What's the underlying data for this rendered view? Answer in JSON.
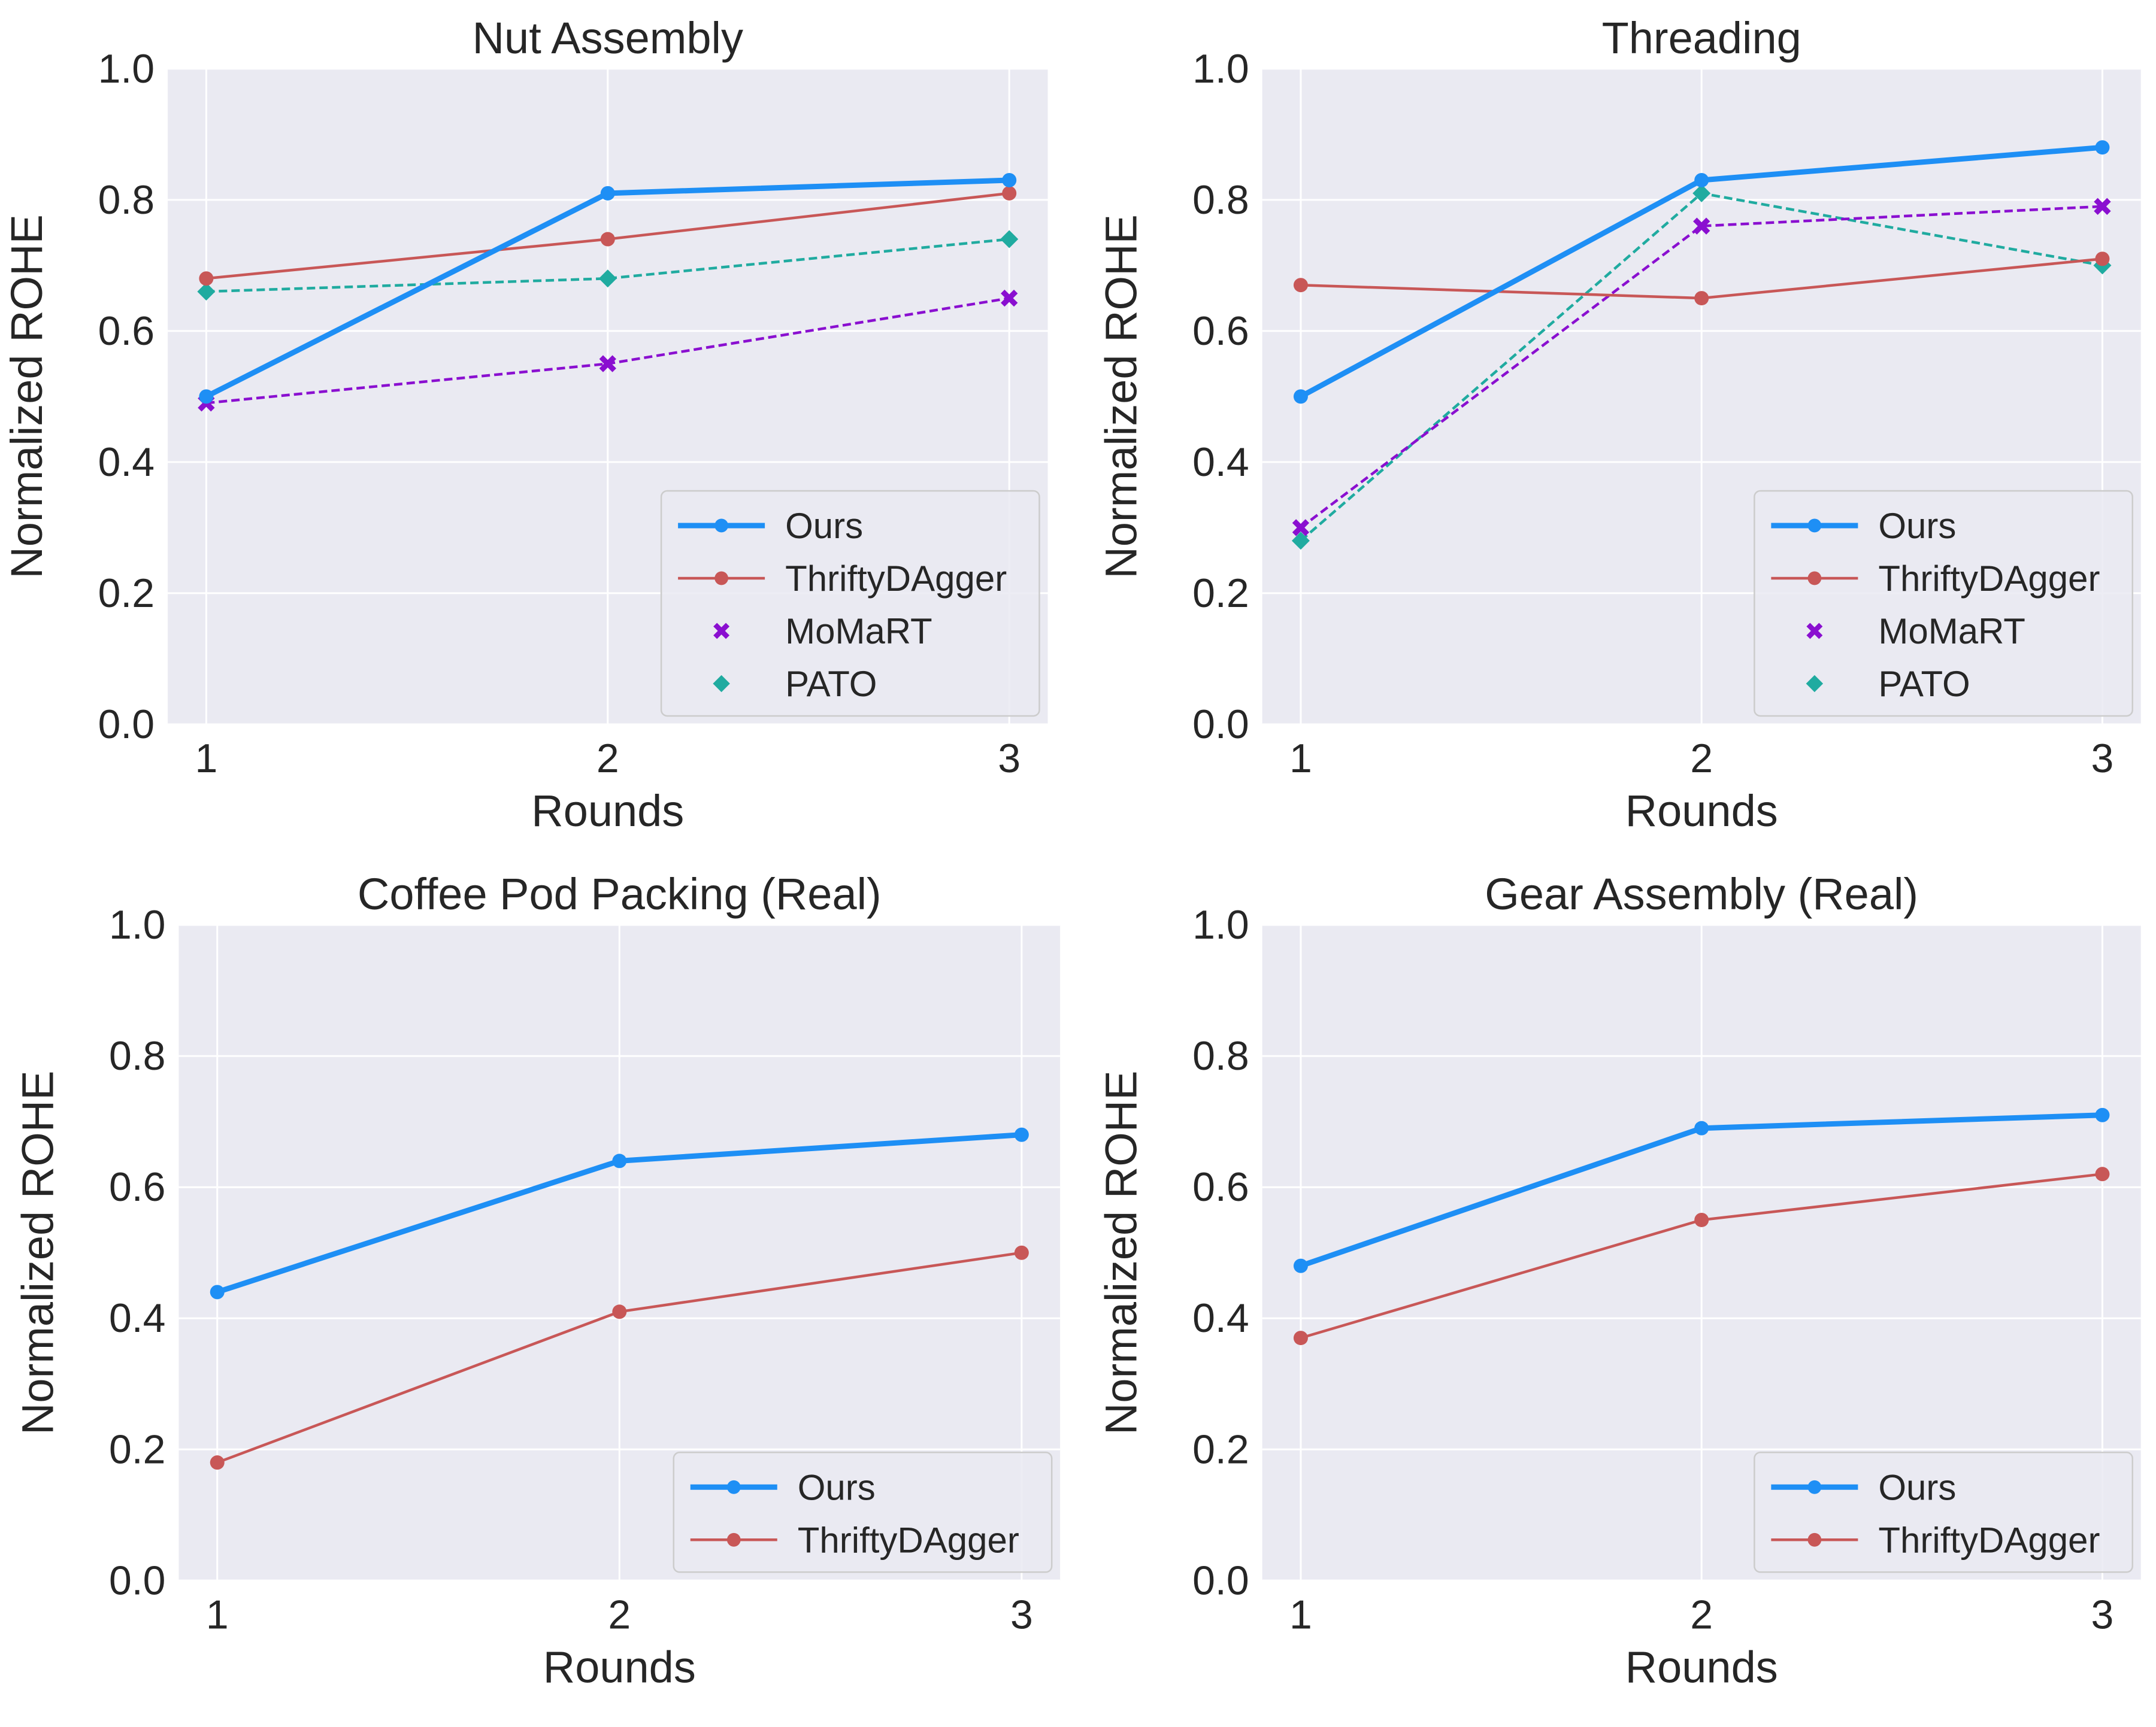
{
  "chart_data": [
    {
      "type": "line",
      "title": "Nut Assembly",
      "xlabel": "Rounds",
      "ylabel": "Normalized ROHE",
      "x": [
        1,
        2,
        3
      ],
      "ylim": [
        0.0,
        1.0
      ],
      "yticks": [
        "0.0",
        "0.2",
        "0.4",
        "0.6",
        "0.8",
        "1.0"
      ],
      "xticks": [
        "1",
        "2",
        "3"
      ],
      "grid": true,
      "legend_position": "lower-right",
      "series": [
        {
          "name": "Ours",
          "values": [
            0.5,
            0.81,
            0.83
          ],
          "color": "#1e8ff5",
          "style": "solid-thick",
          "marker": "circle"
        },
        {
          "name": "ThriftyDAgger",
          "values": [
            0.68,
            0.74,
            0.81
          ],
          "color": "#c85757",
          "style": "solid",
          "marker": "circle"
        },
        {
          "name": "MoMaRT",
          "values": [
            0.49,
            0.55,
            0.65
          ],
          "color": "#8a0fd0",
          "style": "dashed",
          "marker": "x"
        },
        {
          "name": "PATO",
          "values": [
            0.66,
            0.68,
            0.74
          ],
          "color": "#20aba0",
          "style": "dashed",
          "marker": "diamond"
        }
      ]
    },
    {
      "type": "line",
      "title": "Threading",
      "xlabel": "Rounds",
      "ylabel": "Normalized ROHE",
      "x": [
        1,
        2,
        3
      ],
      "ylim": [
        0.0,
        1.0
      ],
      "yticks": [
        "0.0",
        "0.2",
        "0.4",
        "0.6",
        "0.8",
        "1.0"
      ],
      "xticks": [
        "1",
        "2",
        "3"
      ],
      "grid": true,
      "legend_position": "lower-right",
      "series": [
        {
          "name": "Ours",
          "values": [
            0.5,
            0.83,
            0.88
          ],
          "color": "#1e8ff5",
          "style": "solid-thick",
          "marker": "circle"
        },
        {
          "name": "ThriftyDAgger",
          "values": [
            0.67,
            0.65,
            0.71
          ],
          "color": "#c85757",
          "style": "solid",
          "marker": "circle"
        },
        {
          "name": "MoMaRT",
          "values": [
            0.3,
            0.76,
            0.79
          ],
          "color": "#8a0fd0",
          "style": "dashed",
          "marker": "x"
        },
        {
          "name": "PATO",
          "values": [
            0.28,
            0.81,
            0.7
          ],
          "color": "#20aba0",
          "style": "dashed",
          "marker": "diamond"
        }
      ]
    },
    {
      "type": "line",
      "title": "Coffee Pod Packing (Real)",
      "xlabel": "Rounds",
      "ylabel": "Normalized ROHE",
      "x": [
        1,
        2,
        3
      ],
      "ylim": [
        0.0,
        1.0
      ],
      "yticks": [
        "0.0",
        "0.2",
        "0.4",
        "0.6",
        "0.8",
        "1.0"
      ],
      "xticks": [
        "1",
        "2",
        "3"
      ],
      "grid": true,
      "legend_position": "lower-right",
      "series": [
        {
          "name": "Ours",
          "values": [
            0.44,
            0.64,
            0.68
          ],
          "color": "#1e8ff5",
          "style": "solid-thick",
          "marker": "circle"
        },
        {
          "name": "ThriftyDAgger",
          "values": [
            0.18,
            0.41,
            0.5
          ],
          "color": "#c85757",
          "style": "solid",
          "marker": "circle"
        }
      ]
    },
    {
      "type": "line",
      "title": "Gear Assembly (Real)",
      "xlabel": "Rounds",
      "ylabel": "Normalized ROHE",
      "x": [
        1,
        2,
        3
      ],
      "ylim": [
        0.0,
        1.0
      ],
      "yticks": [
        "0.0",
        "0.2",
        "0.4",
        "0.6",
        "0.8",
        "1.0"
      ],
      "xticks": [
        "1",
        "2",
        "3"
      ],
      "grid": true,
      "legend_position": "lower-right",
      "series": [
        {
          "name": "Ours",
          "values": [
            0.48,
            0.69,
            0.71
          ],
          "color": "#1e8ff5",
          "style": "solid-thick",
          "marker": "circle"
        },
        {
          "name": "ThriftyDAgger",
          "values": [
            0.37,
            0.55,
            0.62
          ],
          "color": "#c85757",
          "style": "solid",
          "marker": "circle"
        }
      ]
    }
  ]
}
